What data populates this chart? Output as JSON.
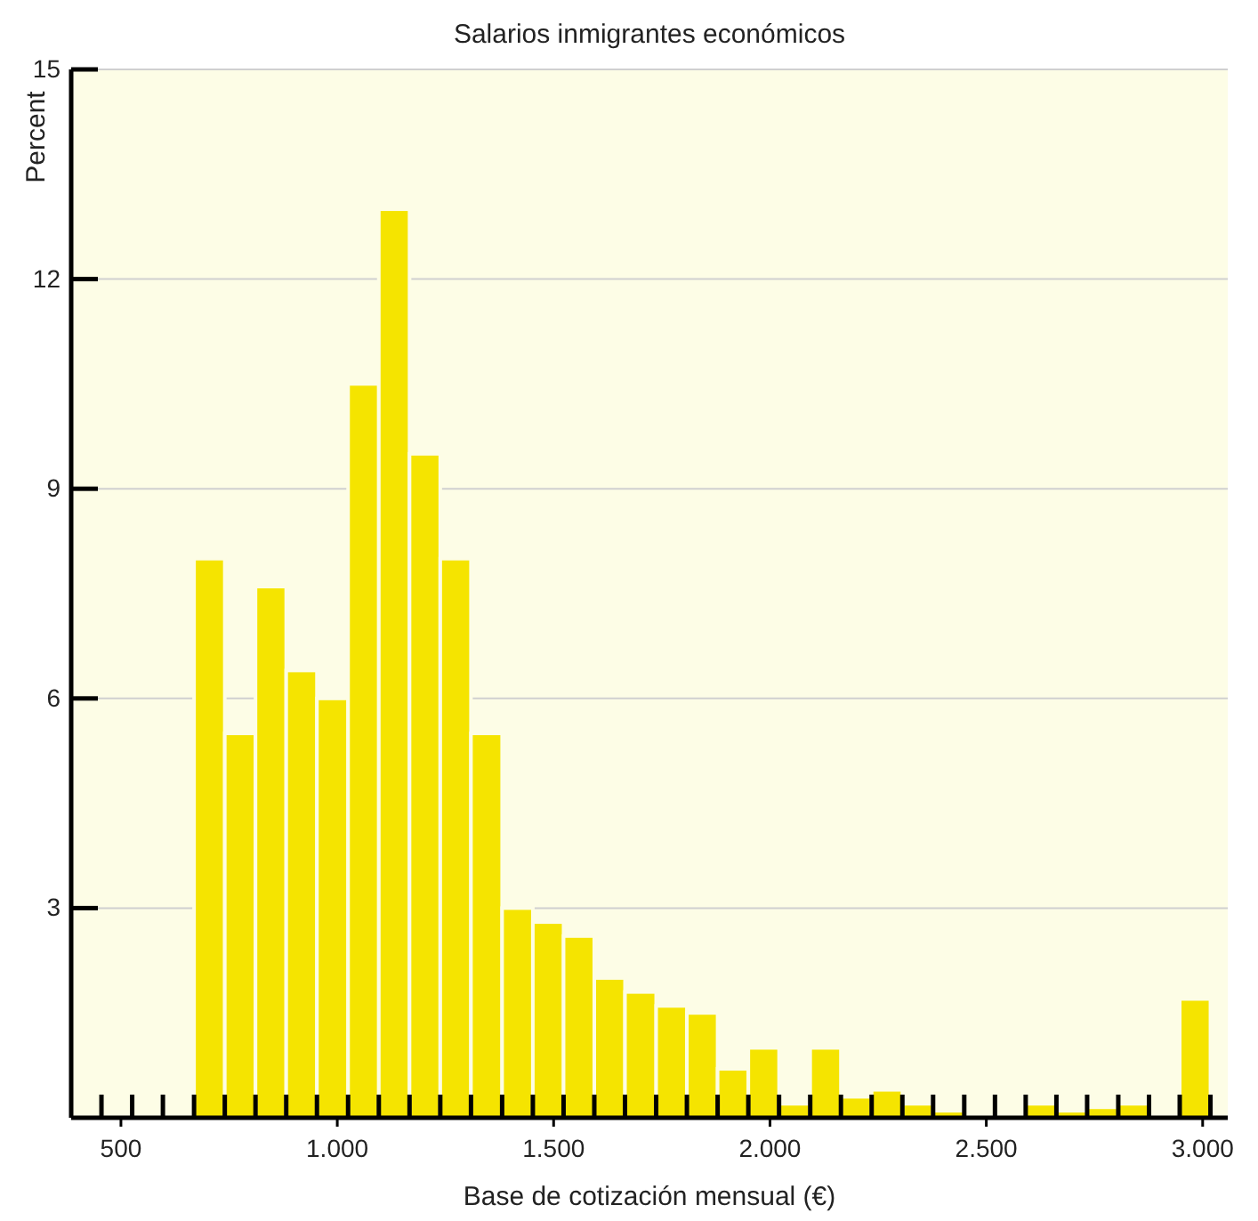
{
  "chart_data": {
    "type": "histogram",
    "title": "Salarios inmigrantes económicos",
    "xlabel": "Base de cotización mensual (€)",
    "ylabel": "Percent",
    "color": "#f5e400",
    "bins": [
      669,
      740,
      811,
      882,
      953,
      1025,
      1096,
      1167,
      1238,
      1309,
      1381,
      1452,
      1523,
      1594,
      1665,
      1737,
      1808,
      1879,
      1950,
      2021,
      2093,
      2164,
      2235,
      2306,
      2377,
      2449,
      2520,
      2591,
      2662,
      2733,
      2805,
      2876,
      2947,
      3018
    ],
    "values": [
      8.0,
      5.5,
      7.6,
      6.4,
      6.0,
      10.5,
      13.0,
      9.5,
      8.0,
      5.5,
      3.0,
      2.8,
      2.6,
      2.0,
      1.8,
      1.6,
      1.5,
      0.7,
      1.0,
      0.2,
      1.0,
      0.3,
      0.4,
      0.2,
      0.1,
      0,
      0,
      0.2,
      0.1,
      0.15,
      0.2,
      0,
      1.7
    ],
    "xlim": [
      385,
      3058
    ],
    "xticks": [
      {
        "value": 455,
        "label": null
      },
      {
        "value": 500,
        "label": "500"
      },
      {
        "value": 526,
        "label": null
      },
      {
        "value": 597,
        "label": null
      },
      {
        "value": 669,
        "label": null
      },
      {
        "value": 740,
        "label": null
      },
      {
        "value": 811,
        "label": null
      },
      {
        "value": 882,
        "label": null
      },
      {
        "value": 953,
        "label": null
      },
      {
        "value": 1000,
        "label": "1.000"
      },
      {
        "value": 1025,
        "label": null
      },
      {
        "value": 1096,
        "label": null
      },
      {
        "value": 1167,
        "label": null
      },
      {
        "value": 1238,
        "label": null
      },
      {
        "value": 1309,
        "label": null
      },
      {
        "value": 1381,
        "label": null
      },
      {
        "value": 1452,
        "label": null
      },
      {
        "value": 1500,
        "label": "1.500"
      },
      {
        "value": 1523,
        "label": null
      },
      {
        "value": 1594,
        "label": null
      },
      {
        "value": 1665,
        "label": null
      },
      {
        "value": 1737,
        "label": null
      },
      {
        "value": 1808,
        "label": null
      },
      {
        "value": 1879,
        "label": null
      },
      {
        "value": 1950,
        "label": null
      },
      {
        "value": 2000,
        "label": "2.000"
      },
      {
        "value": 2021,
        "label": null
      },
      {
        "value": 2093,
        "label": null
      },
      {
        "value": 2164,
        "label": null
      },
      {
        "value": 2235,
        "label": null
      },
      {
        "value": 2306,
        "label": null
      },
      {
        "value": 2377,
        "label": null
      },
      {
        "value": 2449,
        "label": null
      },
      {
        "value": 2500,
        "label": "2.500"
      },
      {
        "value": 2520,
        "label": null
      },
      {
        "value": 2591,
        "label": null
      },
      {
        "value": 2662,
        "label": null
      },
      {
        "value": 2733,
        "label": null
      },
      {
        "value": 2805,
        "label": null
      },
      {
        "value": 2876,
        "label": null
      },
      {
        "value": 2947,
        "label": null
      },
      {
        "value": 3000,
        "label": "3.000"
      },
      {
        "value": 3018,
        "label": null
      }
    ],
    "ylim": [
      0,
      15
    ],
    "yticks": [
      3,
      6,
      9,
      12,
      15
    ],
    "grid": "y"
  }
}
